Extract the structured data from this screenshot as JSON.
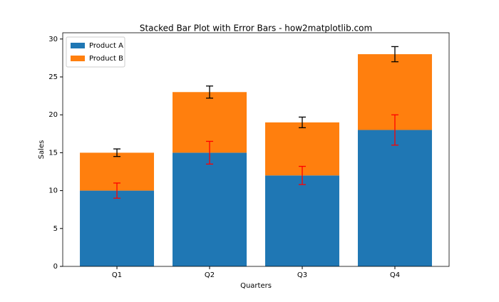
{
  "chart_data": {
    "type": "stacked-bar",
    "title": "Stacked Bar Plot with Error Bars - how2matplotlib.com",
    "x_label": "Quarters",
    "y_label": "Sales",
    "categories": [
      "Q1",
      "Q2",
      "Q3",
      "Q4"
    ],
    "series": [
      {
        "name": "Product A",
        "color": "#1f77b4",
        "error_color": "#ff0000",
        "values": [
          10,
          15,
          12,
          18
        ],
        "errors": [
          1,
          1.5,
          1.2,
          2
        ]
      },
      {
        "name": "Product B",
        "color": "#ff7f0e",
        "error_color": "#000000",
        "values": [
          5,
          8,
          7,
          10
        ],
        "errors": [
          0.5,
          0.8,
          0.7,
          1
        ]
      }
    ],
    "ylim": [
      0,
      30.45
    ],
    "yticks": [
      0,
      5,
      10,
      15,
      20,
      25,
      30
    ],
    "grid": false,
    "legend": "upper-left"
  }
}
